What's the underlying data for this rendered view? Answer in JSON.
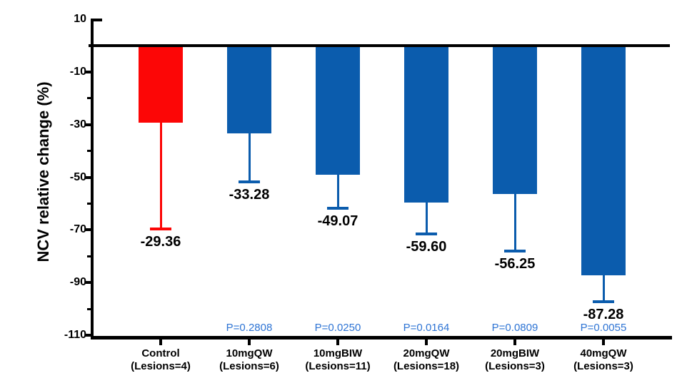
{
  "chart_data": {
    "type": "bar",
    "title": "",
    "xlabel": "",
    "ylabel": "NCV relative change (%)",
    "ylim": [
      -110,
      10
    ],
    "baseline": 0,
    "grid": false,
    "legend": null,
    "y_axis": {
      "major_ticks": [
        {
          "value": 10,
          "label": "10"
        },
        {
          "value": -10,
          "label": "-10"
        },
        {
          "value": -30,
          "label": "-30"
        },
        {
          "value": -50,
          "label": "-50"
        },
        {
          "value": -70,
          "label": "-70"
        },
        {
          "value": -90,
          "label": "-90"
        },
        {
          "value": -110,
          "label": "-110"
        }
      ],
      "minor_ticks": [
        -20,
        -40,
        -60,
        -80,
        -100
      ]
    },
    "bars": [
      {
        "category": "Control",
        "lesions": "(Lesions=4)",
        "value": -29.36,
        "value_label": "-29.36",
        "error_low": -69.6,
        "p_label": "",
        "color_key": "control"
      },
      {
        "category": "10mgQW",
        "lesions": "(Lesions=6)",
        "value": -33.28,
        "value_label": "-33.28",
        "error_low": -51.8,
        "p_label": "P=0.2808",
        "color_key": "treatment"
      },
      {
        "category": "10mgBIW",
        "lesions": "(Lesions=11)",
        "value": -49.07,
        "value_label": "-49.07",
        "error_low": -61.8,
        "p_label": "P=0.0250",
        "color_key": "treatment"
      },
      {
        "category": "20mgQW",
        "lesions": "(Lesions=18)",
        "value": -59.6,
        "value_label": "-59.60",
        "error_low": -71.5,
        "p_label": "P=0.0164",
        "color_key": "treatment"
      },
      {
        "category": "20mgBIW",
        "lesions": "(Lesions=3)",
        "value": -56.25,
        "value_label": "-56.25",
        "error_low": -78.0,
        "p_label": "P=0.0809",
        "color_key": "treatment"
      },
      {
        "category": "40mgQW",
        "lesions": "(Lesions=3)",
        "value": -87.28,
        "value_label": "-87.28",
        "error_low": -97.3,
        "p_label": "P=0.0055",
        "color_key": "treatment"
      }
    ],
    "colors": {
      "control": "#FC0606",
      "treatment": "#0B5CAD",
      "p_value": "#2E74D4",
      "axis": "#000000",
      "value_label": "#000000"
    }
  }
}
